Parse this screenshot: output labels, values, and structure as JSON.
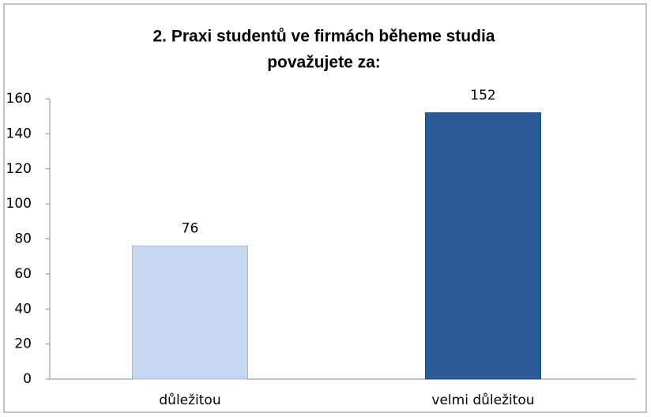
{
  "chart_data": {
    "type": "bar",
    "title": [
      "2. Praxi studentů ve firmách běheme studia",
      "považujete za:"
    ],
    "categories": [
      "důležitou",
      "velmi důležitou"
    ],
    "values": [
      76,
      152
    ],
    "colors": [
      "#c6d9f1",
      "#2b5c98"
    ],
    "ylim": [
      0,
      160
    ],
    "yticks": [
      0,
      20,
      40,
      60,
      80,
      100,
      120,
      140,
      160
    ],
    "grid": false
  }
}
